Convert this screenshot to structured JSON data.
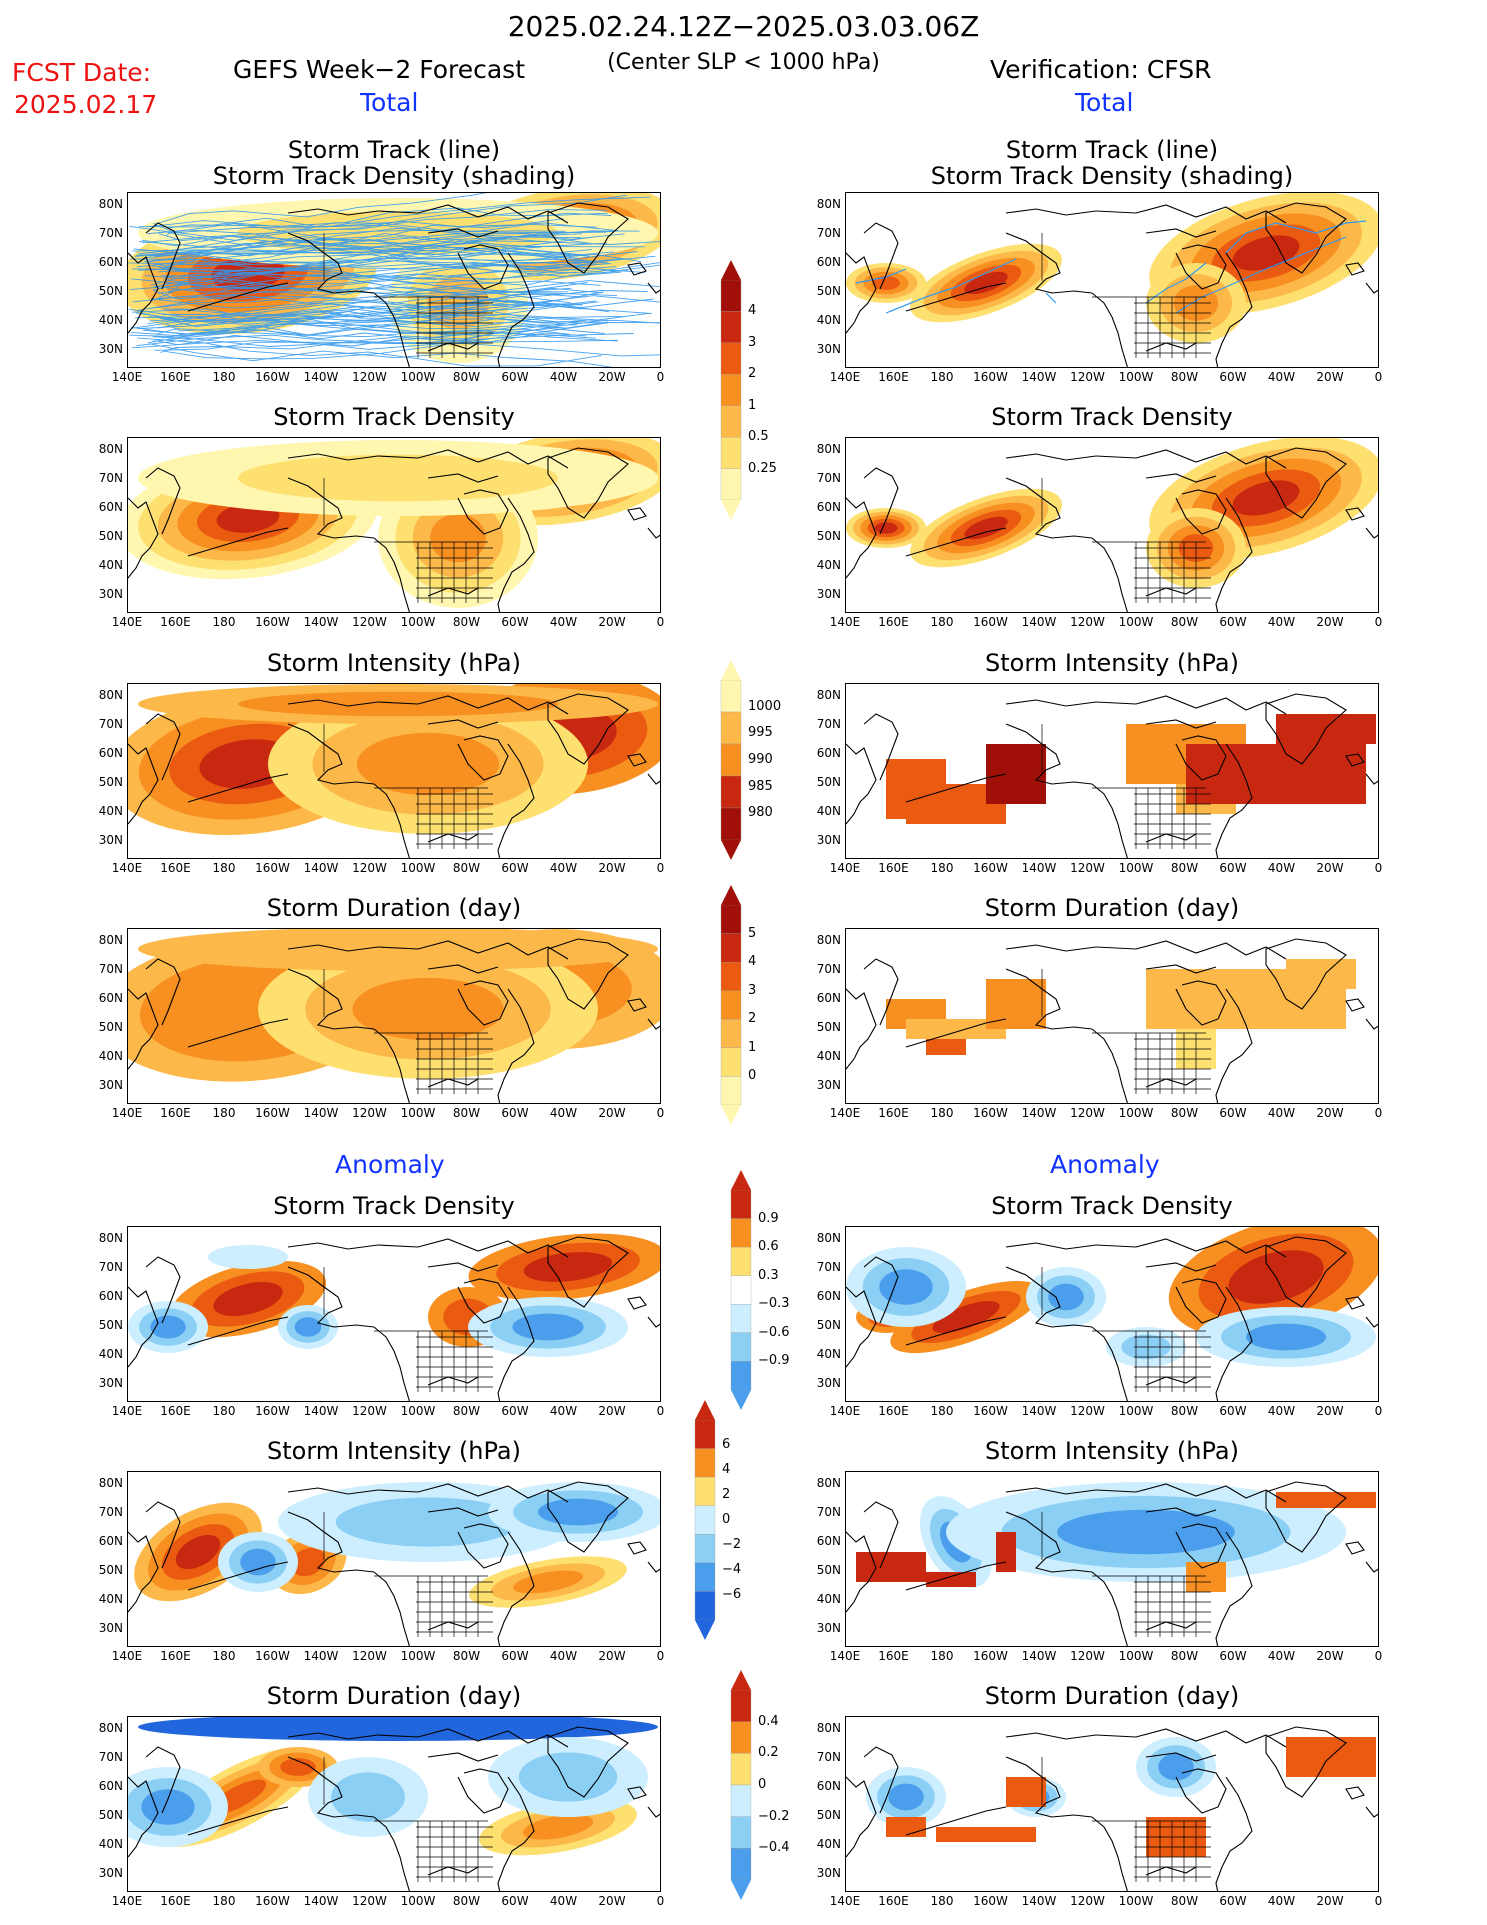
{
  "header": {
    "period": "2025.02.24.12Z−2025.03.03.06Z",
    "criterion": "(Center SLP < 1000 hPa)",
    "fcst_label": "FCST Date:",
    "fcst_date": "2025.02.17",
    "left_title": "GEFS Week−2 Forecast",
    "right_title": "Verification: CFSR",
    "total_label": "Total",
    "anomaly_label": "Anomaly"
  },
  "panel_titles": {
    "track_line_1": "Storm Track (line)",
    "track_line_2": "Storm Track Density (shading)",
    "density": "Storm Track Density",
    "intensity": "Storm Intensity (hPa)",
    "duration": "Storm Duration (day)"
  },
  "axes": {
    "lat_labels": [
      "80N",
      "70N",
      "60N",
      "50N",
      "40N",
      "30N"
    ],
    "lon_labels": [
      "140E",
      "160E",
      "180",
      "160W",
      "140W",
      "120W",
      "100W",
      "80W",
      "60W",
      "40W",
      "20W",
      "0"
    ]
  },
  "colorbars": {
    "density": [
      "4",
      "3",
      "2",
      "1",
      "0.5",
      "0.25"
    ],
    "intensity": [
      "1000",
      "995",
      "990",
      "985",
      "980"
    ],
    "duration": [
      "5",
      "4",
      "3",
      "2",
      "1",
      "0"
    ],
    "anom_density": [
      "0.9",
      "0.6",
      "0.3",
      "−0.3",
      "−0.6",
      "−0.9"
    ],
    "anom_intensity": [
      "6",
      "4",
      "2",
      "0",
      "−2",
      "−4",
      "−6"
    ],
    "anom_duration": [
      "0.4",
      "0.2",
      "0",
      "−0.2",
      "−0.4"
    ]
  },
  "colors": {
    "warm": [
      "#fff7b0",
      "#fde070",
      "#fcb848",
      "#f79020",
      "#ea5a10",
      "#c92810",
      "#a01008"
    ],
    "cool": [
      "#cceeff",
      "#8ccff5",
      "#4a9eec",
      "#2266dd"
    ],
    "track_line": "#3399ee"
  }
}
